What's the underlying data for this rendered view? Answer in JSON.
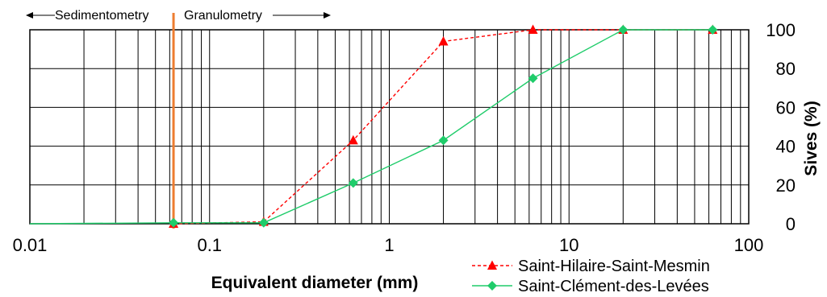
{
  "chart_data": {
    "type": "line",
    "x_scale": "log",
    "xlim": [
      0.01,
      100
    ],
    "ylim": [
      0,
      100
    ],
    "x_ticks": [
      "0.01",
      "0.1",
      "1",
      "10",
      "100"
    ],
    "y_ticks": [
      "0",
      "20",
      "40",
      "60",
      "80",
      "100"
    ],
    "xlabel": "Equivalent diameter (mm)",
    "ylabel": "Sives (%)",
    "grid": true,
    "legend_position": "bottom-right",
    "divider_x": 0.063,
    "divider_color": "#ed7d31",
    "annotations": {
      "left": "Sedimentometry",
      "right": "Granulometry"
    },
    "series": [
      {
        "name": "Saint-Hilaire-Saint-Mesmin",
        "color": "#ff0000",
        "marker": "triangle",
        "line": "dashed",
        "x": [
          0.063,
          0.2,
          0.63,
          2,
          6.3,
          20,
          63
        ],
        "y": [
          0,
          1,
          43,
          94,
          100,
          100,
          100
        ]
      },
      {
        "name": "Saint-Clément-des-Levées",
        "color": "#1fcc6a",
        "marker": "diamond",
        "line": "solid",
        "x": [
          0.01,
          0.063,
          0.2,
          0.63,
          2,
          6.3,
          20,
          63
        ],
        "y": [
          0,
          0.5,
          0.5,
          21,
          43,
          75,
          100,
          100
        ]
      }
    ]
  }
}
